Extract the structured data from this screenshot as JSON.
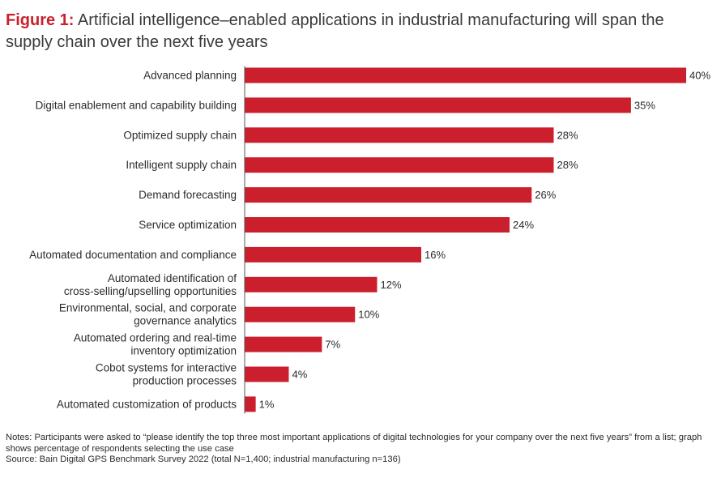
{
  "title": {
    "prefix": "Figure 1:",
    "text": "Artificial intelligence–enabled applications in industrial manufacturing will span the supply chain over the next five years"
  },
  "chart_data": {
    "type": "bar",
    "orientation": "horizontal",
    "categories": [
      [
        "Advanced planning"
      ],
      [
        "Digital enablement and capability building"
      ],
      [
        "Optimized supply chain"
      ],
      [
        "Intelligent supply chain"
      ],
      [
        "Demand forecasting"
      ],
      [
        "Service optimization"
      ],
      [
        "Automated documentation and compliance"
      ],
      [
        "Automated identification of",
        "cross-selling/upselling opportunities"
      ],
      [
        "Environmental, social, and corporate",
        "governance analytics"
      ],
      [
        "Automated ordering and real-time",
        "inventory optimization"
      ],
      [
        "Cobot systems for interactive",
        "production processes"
      ],
      [
        "Automated customization of products"
      ]
    ],
    "values": [
      40,
      35,
      28,
      28,
      26,
      24,
      16,
      12,
      10,
      7,
      4,
      1
    ],
    "value_labels": [
      "40%",
      "35%",
      "28%",
      "28%",
      "26%",
      "24%",
      "16%",
      "12%",
      "10%",
      "7%",
      "4%",
      "1%"
    ],
    "unit": "%",
    "xlim": [
      0,
      40
    ],
    "bar_color": "#cc1f2d",
    "axis_color": "#555555",
    "grid": false,
    "legend": "none"
  },
  "notes": {
    "line1": "Notes: Participants were asked to “please identify the top three most important applications of digital technologies for your company over the next five years” from a list; graph shows percentage of respondents selecting the use case",
    "line2": "Source: Bain Digital GPS Benchmark Survey 2022 (total N=1,400; industrial manufacturing n=136)"
  }
}
